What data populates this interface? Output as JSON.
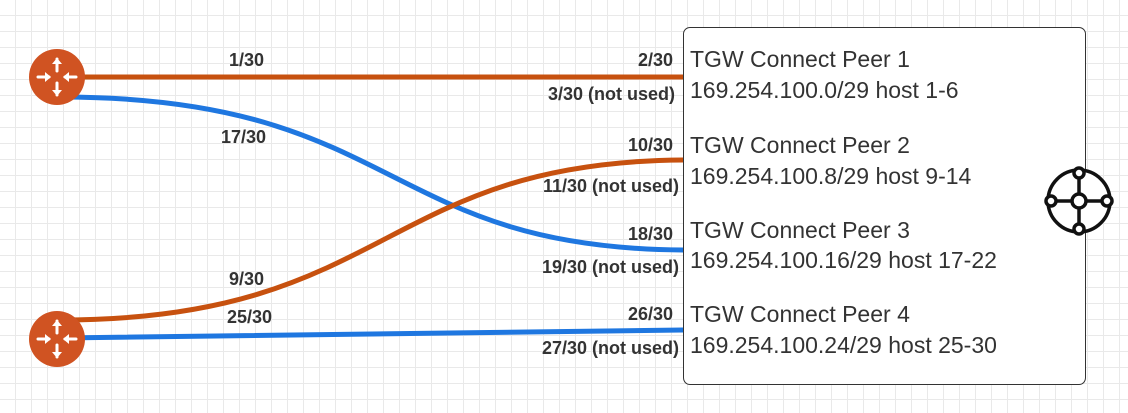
{
  "colors": {
    "orange": "#c7510f",
    "blue": "#1f77e0",
    "router_fill": "#d05322",
    "text": "#333333",
    "border": "#333333"
  },
  "routers": [
    {
      "icon": "router-icon"
    },
    {
      "icon": "router-icon"
    }
  ],
  "links": {
    "top_orange": {
      "left": "1/30",
      "right": "2/30",
      "unused": "3/30 (not used)"
    },
    "top_blue": {
      "left": "17/30",
      "right": "18/30",
      "unused": "19/30 (not used)"
    },
    "bottom_orange": {
      "left": "9/30",
      "right": "10/30",
      "unused": "11/30 (not used)"
    },
    "bottom_blue": {
      "left": "25/30",
      "right": "26/30",
      "unused": "27/30 (not used)"
    }
  },
  "tgw": {
    "icon": "transit-gateway-icon",
    "peers": [
      {
        "title": "TGW Connect Peer 1",
        "cidr": "169.254.100.0/29 host 1-6"
      },
      {
        "title": "TGW Connect Peer 2",
        "cidr": "169.254.100.8/29 host 9-14"
      },
      {
        "title": "TGW Connect Peer 3",
        "cidr": "169.254.100.16/29 host 17-22"
      },
      {
        "title": "TGW Connect Peer 4",
        "cidr": "169.254.100.24/29 host 25-30"
      }
    ]
  }
}
